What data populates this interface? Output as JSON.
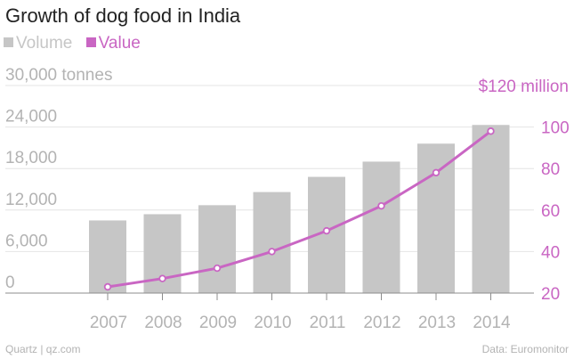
{
  "footer": {
    "source_left": "Quartz | qz.com",
    "source_right": "Data: Euromonitor"
  },
  "colors": {
    "volume": "#c6c6c6",
    "value": "#c966c3",
    "axis_text": "#b3b3b3",
    "grid": "#e4e4e4",
    "baseline": "#8c8c8c"
  },
  "chart_data": {
    "type": "bar",
    "title": "Growth of dog food in India",
    "categories": [
      "2007",
      "2008",
      "2009",
      "2010",
      "2011",
      "2012",
      "2013",
      "2014"
    ],
    "series": [
      {
        "name": "Volume",
        "type": "bar",
        "axis": "left",
        "values": [
          10500,
          11400,
          12700,
          14600,
          16800,
          19000,
          21600,
          24300
        ]
      },
      {
        "name": "Value",
        "type": "line",
        "axis": "right",
        "values": [
          23,
          27,
          32,
          40,
          50,
          62,
          78,
          98
        ]
      }
    ],
    "left_axis": {
      "ylim": [
        0,
        30000
      ],
      "ticks": [
        "0",
        "6,000",
        "12,000",
        "18,000",
        "24,000",
        "30,000 tonnes"
      ]
    },
    "right_axis": {
      "ylim": [
        20,
        120
      ],
      "ticks": [
        "20",
        "40",
        "60",
        "80",
        "100",
        "$120 million"
      ]
    },
    "legend": [
      "Volume",
      "Value"
    ],
    "legend_position": "top-left",
    "grid": true
  }
}
